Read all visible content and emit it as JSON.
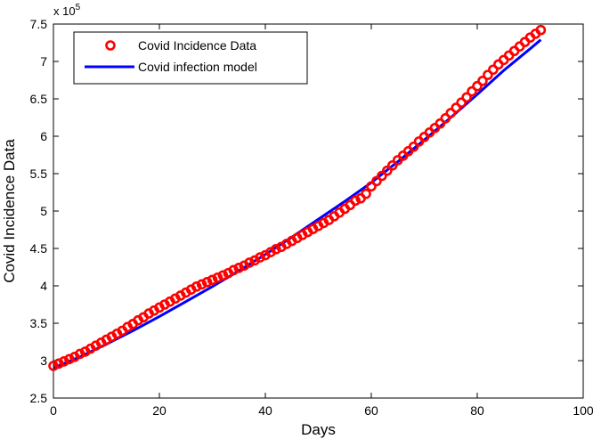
{
  "chart_data": {
    "type": "line",
    "title": "",
    "xlabel": "Days",
    "ylabel": "Covid Incidence Data",
    "xlim": [
      0,
      100
    ],
    "ylim": [
      2.5,
      7.5
    ],
    "y_multiplier": "x 10",
    "y_exponent": "5",
    "xticks": [
      "0",
      "20",
      "40",
      "60",
      "80",
      "100"
    ],
    "yticks": [
      "2.5",
      "3",
      "3.5",
      "4",
      "4.5",
      "5",
      "5.5",
      "6",
      "6.5",
      "7",
      "7.5"
    ],
    "grid": false,
    "legend_position": "top-left",
    "series": [
      {
        "name": "Covid Incidence Data",
        "style": "markers",
        "color": "#ff0000",
        "x": [
          0,
          1,
          2,
          3,
          4,
          5,
          6,
          7,
          8,
          9,
          10,
          11,
          12,
          13,
          14,
          15,
          16,
          17,
          18,
          19,
          20,
          21,
          22,
          23,
          24,
          25,
          26,
          27,
          28,
          29,
          30,
          31,
          32,
          33,
          34,
          35,
          36,
          37,
          38,
          39,
          40,
          41,
          42,
          43,
          44,
          45,
          46,
          47,
          48,
          49,
          50,
          51,
          52,
          53,
          54,
          55,
          56,
          57,
          58,
          59,
          60,
          61,
          62,
          63,
          64,
          65,
          66,
          67,
          68,
          69,
          70,
          71,
          72,
          73,
          74,
          75,
          76,
          77,
          78,
          79,
          80,
          81,
          82,
          83,
          84,
          85,
          86,
          87,
          88,
          89,
          90,
          91,
          92
        ],
        "y": [
          2.93,
          2.96,
          2.99,
          3.02,
          3.05,
          3.09,
          3.12,
          3.16,
          3.2,
          3.24,
          3.28,
          3.32,
          3.36,
          3.4,
          3.45,
          3.49,
          3.54,
          3.58,
          3.63,
          3.67,
          3.71,
          3.75,
          3.79,
          3.83,
          3.87,
          3.91,
          3.95,
          3.99,
          4.02,
          4.05,
          4.08,
          4.11,
          4.14,
          4.17,
          4.21,
          4.24,
          4.27,
          4.31,
          4.34,
          4.38,
          4.41,
          4.45,
          4.49,
          4.52,
          4.56,
          4.6,
          4.64,
          4.68,
          4.72,
          4.76,
          4.8,
          4.84,
          4.88,
          4.93,
          4.98,
          5.03,
          5.08,
          5.14,
          5.17,
          5.23,
          5.33,
          5.4,
          5.47,
          5.54,
          5.61,
          5.68,
          5.74,
          5.8,
          5.86,
          5.93,
          5.99,
          6.05,
          6.11,
          6.17,
          6.24,
          6.31,
          6.38,
          6.45,
          6.52,
          6.6,
          6.67,
          6.74,
          6.82,
          6.89,
          6.96,
          7.02,
          7.08,
          7.14,
          7.2,
          7.26,
          7.32,
          7.37,
          7.42
        ]
      },
      {
        "name": "Covid infection  model",
        "style": "line",
        "color": "#0000ff",
        "x": [
          0,
          5,
          10,
          15,
          20,
          25,
          30,
          35,
          40,
          45,
          50,
          55,
          60,
          65,
          70,
          75,
          80,
          85,
          90,
          92
        ],
        "y": [
          2.9,
          3.05,
          3.22,
          3.4,
          3.59,
          3.79,
          3.99,
          4.2,
          4.42,
          4.65,
          4.89,
          5.13,
          5.38,
          5.66,
          5.95,
          6.25,
          6.56,
          6.88,
          7.17,
          7.29
        ]
      }
    ]
  }
}
